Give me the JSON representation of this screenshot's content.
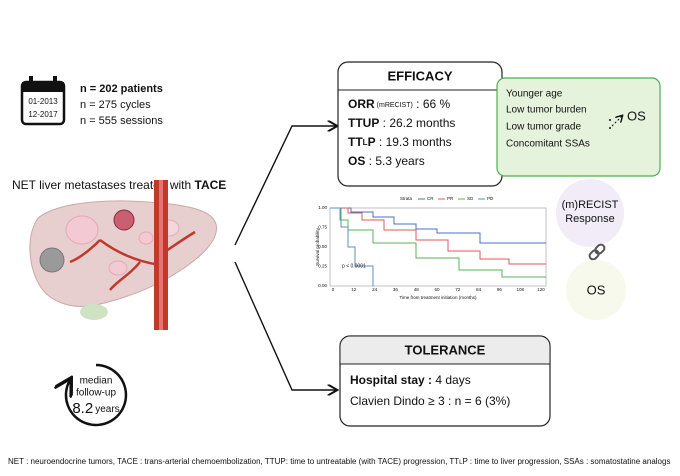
{
  "cohort": {
    "calendar": [
      "01-2013",
      "12-2017"
    ],
    "lines": [
      "n = 202 patients",
      "n = 275 cycles",
      "n = 555 sessions"
    ]
  },
  "population": {
    "text": "NET liver metastases treated with ",
    "emphasis": "TACE"
  },
  "follow_up": {
    "lines": [
      "median",
      "follow-up"
    ],
    "value": "8.2",
    "unit": "years"
  },
  "efficacy": {
    "title": "EFFICACY",
    "orr": {
      "label": "ORR",
      "note": "(mRECIST)",
      "text": " : 66 %"
    },
    "ttup": {
      "label": "TTUP",
      "text": " : 26.2 months"
    },
    "ttlp": {
      "label": "TT",
      "sub": "L",
      "label_end": "P",
      "text": " : 19.3 months"
    },
    "os": {
      "label": "OS",
      "text": " :  5.3 years"
    }
  },
  "factors": {
    "items": [
      "Younger age",
      "Low tumor burden",
      "Low tumor grade",
      "Concomitant SSAs"
    ],
    "outcome": "OS"
  },
  "response": {
    "lines": [
      "(m)RECIST",
      "Response"
    ],
    "outcome": "OS"
  },
  "km_plot": {
    "legend_title": "Strata",
    "strata": [
      "CR",
      "PR",
      "SD",
      "PD"
    ],
    "y_label": "Survival probability",
    "x_label": "Time from treatment initiation (months)",
    "y_ticks": [
      "1.00",
      "0.75",
      "0.50",
      "0.25",
      "0.00"
    ],
    "x_ticks": [
      0,
      12,
      24,
      36,
      48,
      60,
      72,
      84,
      96,
      108,
      120
    ],
    "p_value": "p < 0.0001"
  },
  "tolerance": {
    "title": "TOLERANCE",
    "stay": {
      "label": "Hospital stay :",
      "text": " 4  days"
    },
    "clavien": "Clavien Dindo ≥ 3 : n = 6 (3%)"
  },
  "footnote": {
    "before": "NET : neuroendocrine tumors, TACE : trans-arterial chemoembolization,  TTUP: time to untreatable  (with TACE) progression, TT",
    "sub": "L",
    "after": "P : time to liver progression,  SSAs : somatostatine analogs"
  }
}
